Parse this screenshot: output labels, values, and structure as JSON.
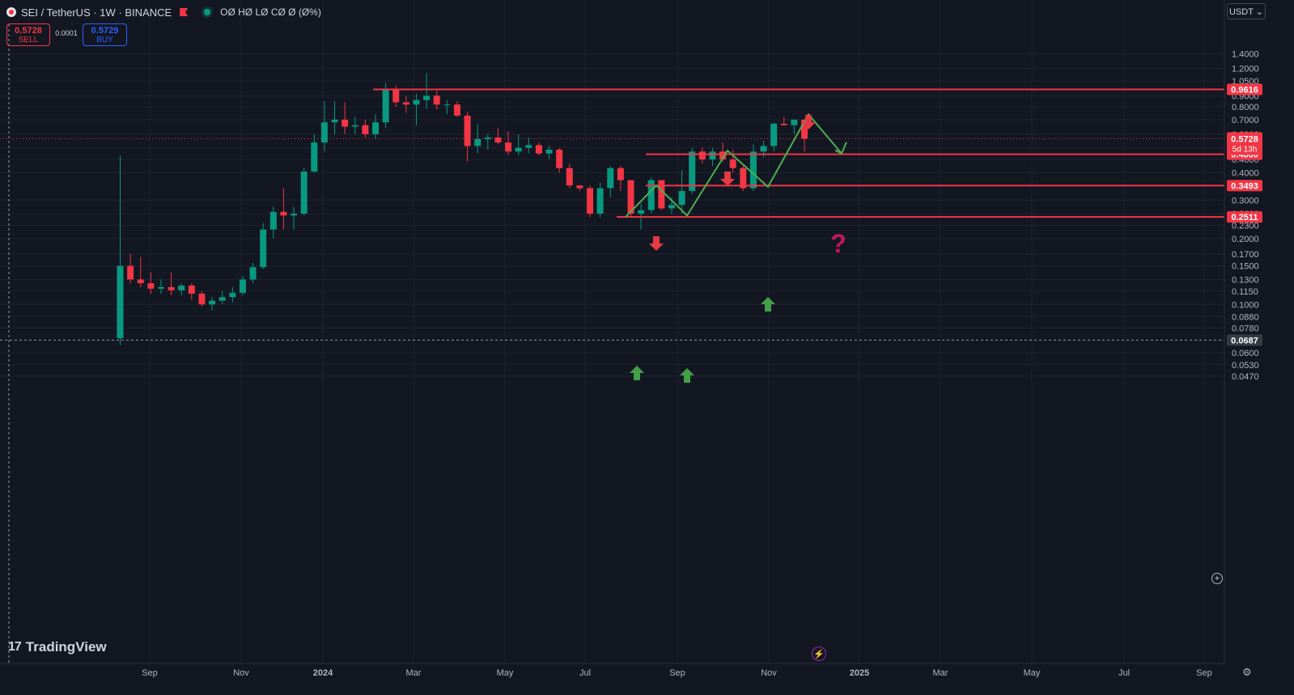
{
  "header": {
    "symbol": "SEI / TetherUS · 1W · BINANCE",
    "ohlc": "OØ HØ LØ CØ Ø (Ø%)"
  },
  "trade": {
    "sell_price": "0.5728",
    "sell_label": "SELL",
    "spread": "0.0001",
    "buy_price": "0.5729",
    "buy_label": "BUY"
  },
  "currency_selector": "USDT ⌄",
  "logo_text": "TradingView",
  "icons": [
    "symbol-logo-icon",
    "flag-icon",
    "market-status-icon",
    "lightning-icon",
    "settings-icon",
    "add-alert-icon"
  ],
  "colors": {
    "background": "#131722",
    "up": "#089981",
    "down": "#f23645",
    "annotation_green": "#4caf50",
    "grid": "#1e222d"
  },
  "chart_data": {
    "type": "candlestick",
    "scale": "log",
    "ylim": [
      0.043,
      1.5
    ],
    "y_ticks": [
      "1.4000",
      "1.2000",
      "1.0500",
      "0.9000",
      "0.8000",
      "0.7000",
      "0.6000",
      "0.5200",
      "0.4600",
      "0.4000",
      "0.3000",
      "0.2600",
      "0.2300",
      "0.2000",
      "0.1700",
      "0.1500",
      "0.1300",
      "0.1150",
      "0.1000",
      "0.0880",
      "0.0780",
      "0.0600",
      "0.0530",
      "0.0470"
    ],
    "x_ticks": [
      "Sep",
      "Nov",
      "2024",
      "Mar",
      "May",
      "Jul",
      "Sep",
      "Nov",
      "2025",
      "Mar",
      "May",
      "Jul",
      "Sep"
    ],
    "candles": [
      [
        0.07,
        0.48,
        0.065,
        0.15
      ],
      [
        0.15,
        0.17,
        0.125,
        0.13
      ],
      [
        0.13,
        0.165,
        0.12,
        0.125
      ],
      [
        0.125,
        0.14,
        0.112,
        0.118
      ],
      [
        0.118,
        0.13,
        0.112,
        0.12
      ],
      [
        0.12,
        0.14,
        0.11,
        0.116
      ],
      [
        0.116,
        0.125,
        0.11,
        0.122
      ],
      [
        0.122,
        0.125,
        0.105,
        0.112
      ],
      [
        0.112,
        0.115,
        0.098,
        0.1
      ],
      [
        0.1,
        0.108,
        0.094,
        0.104
      ],
      [
        0.104,
        0.115,
        0.1,
        0.108
      ],
      [
        0.108,
        0.12,
        0.102,
        0.113
      ],
      [
        0.113,
        0.135,
        0.11,
        0.13
      ],
      [
        0.13,
        0.155,
        0.125,
        0.148
      ],
      [
        0.148,
        0.235,
        0.145,
        0.22
      ],
      [
        0.22,
        0.28,
        0.2,
        0.265
      ],
      [
        0.265,
        0.34,
        0.22,
        0.255
      ],
      [
        0.255,
        0.28,
        0.22,
        0.26
      ],
      [
        0.26,
        0.42,
        0.255,
        0.405
      ],
      [
        0.405,
        0.6,
        0.4,
        0.55
      ],
      [
        0.55,
        0.85,
        0.5,
        0.68
      ],
      [
        0.68,
        0.85,
        0.6,
        0.7
      ],
      [
        0.7,
        0.84,
        0.6,
        0.65
      ],
      [
        0.65,
        0.72,
        0.6,
        0.66
      ],
      [
        0.66,
        0.7,
        0.58,
        0.6
      ],
      [
        0.6,
        0.74,
        0.57,
        0.68
      ],
      [
        0.68,
        1.03,
        0.64,
        0.96
      ],
      [
        0.96,
        1.0,
        0.8,
        0.84
      ],
      [
        0.84,
        0.9,
        0.75,
        0.82
      ],
      [
        0.82,
        0.92,
        0.66,
        0.86
      ],
      [
        0.86,
        1.14,
        0.78,
        0.9
      ],
      [
        0.9,
        0.95,
        0.78,
        0.82
      ],
      [
        0.82,
        0.86,
        0.74,
        0.82
      ],
      [
        0.82,
        0.85,
        0.72,
        0.73
      ],
      [
        0.73,
        0.76,
        0.45,
        0.53
      ],
      [
        0.53,
        0.67,
        0.49,
        0.57
      ],
      [
        0.57,
        0.6,
        0.51,
        0.58
      ],
      [
        0.58,
        0.64,
        0.54,
        0.55
      ],
      [
        0.55,
        0.62,
        0.48,
        0.5
      ],
      [
        0.5,
        0.6,
        0.48,
        0.52
      ],
      [
        0.52,
        0.58,
        0.49,
        0.535
      ],
      [
        0.535,
        0.55,
        0.48,
        0.49
      ],
      [
        0.49,
        0.53,
        0.46,
        0.51
      ],
      [
        0.51,
        0.52,
        0.4,
        0.42
      ],
      [
        0.42,
        0.44,
        0.34,
        0.35
      ],
      [
        0.35,
        0.35,
        0.33,
        0.34
      ],
      [
        0.34,
        0.35,
        0.25,
        0.26
      ],
      [
        0.26,
        0.36,
        0.25,
        0.34
      ],
      [
        0.34,
        0.43,
        0.31,
        0.42
      ],
      [
        0.42,
        0.43,
        0.33,
        0.37
      ],
      [
        0.37,
        0.37,
        0.25,
        0.26
      ],
      [
        0.26,
        0.29,
        0.22,
        0.27
      ],
      [
        0.27,
        0.38,
        0.26,
        0.37
      ],
      [
        0.37,
        0.37,
        0.27,
        0.275
      ],
      [
        0.275,
        0.31,
        0.26,
        0.285
      ],
      [
        0.285,
        0.41,
        0.26,
        0.33
      ],
      [
        0.33,
        0.52,
        0.32,
        0.5
      ],
      [
        0.5,
        0.52,
        0.44,
        0.46
      ],
      [
        0.46,
        0.52,
        0.43,
        0.5
      ],
      [
        0.5,
        0.55,
        0.45,
        0.46
      ],
      [
        0.46,
        0.51,
        0.4,
        0.42
      ],
      [
        0.42,
        0.43,
        0.33,
        0.34
      ],
      [
        0.34,
        0.54,
        0.33,
        0.5
      ],
      [
        0.5,
        0.56,
        0.47,
        0.53
      ],
      [
        0.53,
        0.68,
        0.5,
        0.67
      ],
      [
        0.67,
        0.72,
        0.66,
        0.66
      ],
      [
        0.66,
        0.7,
        0.6,
        0.7
      ],
      [
        0.7,
        0.7,
        0.5,
        0.5728
      ]
    ],
    "price_levels": [
      "0.9616",
      "0.4860",
      "0.3493",
      "0.2511"
    ],
    "last_price": "0.5728",
    "countdown": "5d 13h",
    "crosshair_price": "0.0687",
    "annotations": {
      "question": "?"
    }
  }
}
